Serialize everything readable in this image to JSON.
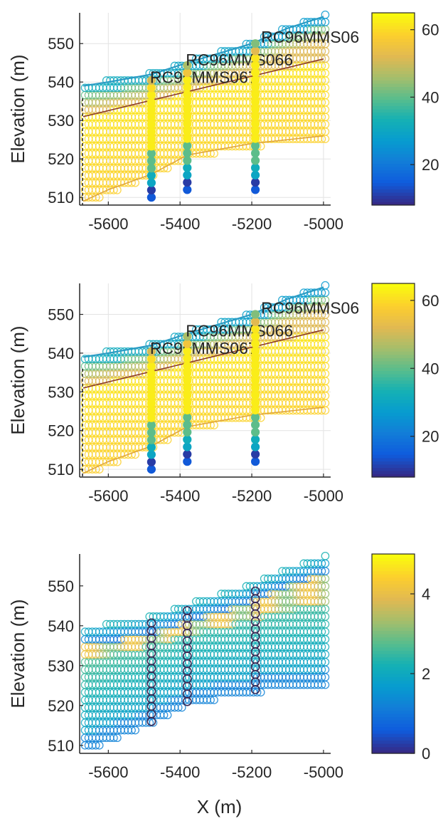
{
  "chart_data": [
    {
      "type": "scatter",
      "title": "",
      "xlabel": "",
      "ylabel": "Elevation (m)",
      "xlim": [
        -5680,
        -4980
      ],
      "ylim": [
        508,
        558
      ],
      "xticks": [
        "-5600",
        "-5400",
        "-5200",
        "-5000"
      ],
      "yticks": [
        "510",
        "520",
        "530",
        "540",
        "550"
      ],
      "grid": true,
      "colorbar": {
        "min": 8,
        "max": 65,
        "ticks": [
          "20",
          "40",
          "60"
        ],
        "colormap": "parula"
      },
      "surfaces": {
        "topo": [
          [
            -5670,
            539
          ],
          [
            -5600,
            540
          ],
          [
            -5480,
            542
          ],
          [
            -5380,
            545
          ],
          [
            -5200,
            550
          ],
          [
            -5100,
            554
          ],
          [
            -5000,
            557
          ]
        ],
        "bottom": [
          [
            -5670,
            509
          ],
          [
            -5600,
            512
          ],
          [
            -5480,
            516
          ],
          [
            -5380,
            521
          ],
          [
            -5200,
            524
          ],
          [
            -5000,
            526
          ]
        ],
        "contact": [
          [
            -5670,
            531
          ],
          [
            -5000,
            546
          ]
        ]
      },
      "drillholes": [
        {
          "name": "RC96MMS067",
          "x": -5480,
          "top": 542,
          "bottom": 510
        },
        {
          "name": "RC96MMS066",
          "x": -5380,
          "top": 545,
          "bottom": 512
        },
        {
          "name": "RC96MMS06",
          "x": -5190,
          "top": 550,
          "bottom": 512
        }
      ]
    },
    {
      "type": "scatter",
      "title": "",
      "xlabel": "",
      "ylabel": "Elevation (m)",
      "xlim": [
        -5680,
        -4980
      ],
      "ylim": [
        508,
        558
      ],
      "xticks": [
        "-5600",
        "-5400",
        "-5200",
        "-5000"
      ],
      "yticks": [
        "510",
        "520",
        "530",
        "540",
        "550"
      ],
      "grid": true,
      "colorbar": {
        "min": 8,
        "max": 65,
        "ticks": [
          "20",
          "40",
          "60"
        ],
        "colormap": "parula"
      },
      "surfaces": {
        "topo": [
          [
            -5670,
            539
          ],
          [
            -5600,
            540
          ],
          [
            -5480,
            542
          ],
          [
            -5380,
            545
          ],
          [
            -5200,
            550
          ],
          [
            -5100,
            554
          ],
          [
            -5000,
            557
          ]
        ],
        "bottom": [
          [
            -5670,
            509
          ],
          [
            -5600,
            512
          ],
          [
            -5480,
            516
          ],
          [
            -5380,
            521
          ],
          [
            -5200,
            524
          ],
          [
            -5000,
            526
          ]
        ],
        "contact": [
          [
            -5670,
            531
          ],
          [
            -5000,
            546
          ]
        ]
      },
      "drillholes": [
        {
          "name": "RC96MMS067",
          "x": -5480,
          "top": 542,
          "bottom": 510
        },
        {
          "name": "RC96MMS066",
          "x": -5380,
          "top": 545,
          "bottom": 512
        },
        {
          "name": "RC96MMS06",
          "x": -5190,
          "top": 550,
          "bottom": 512
        }
      ]
    },
    {
      "type": "scatter",
      "title": "",
      "xlabel": "X (m)",
      "ylabel": "Elevation (m)",
      "xlim": [
        -5680,
        -4980
      ],
      "ylim": [
        508,
        558
      ],
      "xticks": [
        "-5600",
        "-5400",
        "-5200",
        "-5000"
      ],
      "yticks": [
        "510",
        "520",
        "530",
        "540",
        "550"
      ],
      "grid": false,
      "colorbar": {
        "min": 0,
        "max": 5,
        "ticks": [
          "0",
          "2",
          "4"
        ],
        "colormap": "parula"
      },
      "surfaces": {
        "topo": [
          [
            -5670,
            539
          ],
          [
            -5600,
            540
          ],
          [
            -5480,
            542
          ],
          [
            -5380,
            545
          ],
          [
            -5200,
            550
          ],
          [
            -5100,
            554
          ],
          [
            -5000,
            557
          ]
        ],
        "bottom": [
          [
            -5670,
            509
          ],
          [
            -5600,
            512
          ],
          [
            -5480,
            516
          ],
          [
            -5380,
            521
          ],
          [
            -5200,
            524
          ],
          [
            -5000,
            526
          ]
        ],
        "contact": [
          [
            -5670,
            531
          ],
          [
            -5000,
            546
          ]
        ]
      },
      "drillholes": [
        {
          "name": "",
          "x": -5480,
          "top": 542,
          "bottom": 516
        },
        {
          "name": "",
          "x": -5380,
          "top": 545,
          "bottom": 521
        },
        {
          "name": "",
          "x": -5190,
          "top": 550,
          "bottom": 524
        }
      ]
    }
  ]
}
